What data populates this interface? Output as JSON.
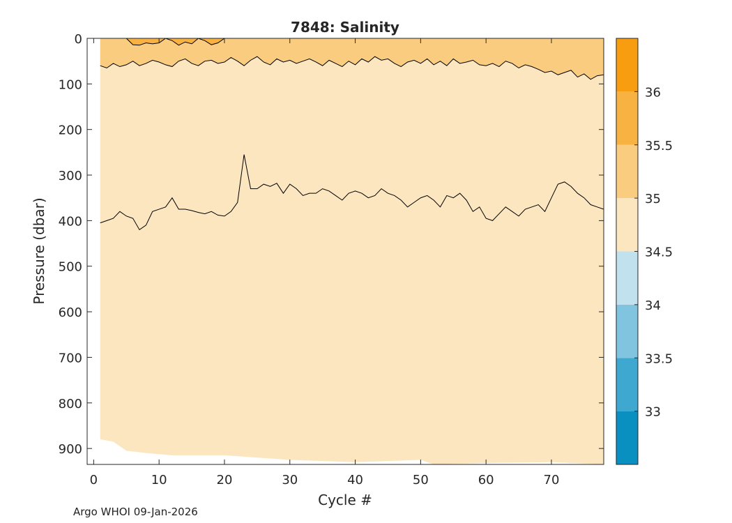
{
  "chart_data": {
    "type": "contour",
    "title": "7848:  Salinity",
    "xlabel": "Cycle #",
    "ylabel": "Pressure (dbar)",
    "xlim": [
      -1,
      78
    ],
    "ylim": [
      935,
      0
    ],
    "y_reversed": true,
    "xticks": [
      0,
      10,
      20,
      30,
      40,
      50,
      60,
      70
    ],
    "yticks": [
      0,
      100,
      200,
      300,
      400,
      500,
      600,
      700,
      800,
      900
    ],
    "colorbar": {
      "range": [
        32.5,
        36.5
      ],
      "ticks": [
        33,
        33.5,
        34,
        34.5,
        35,
        35.5,
        36
      ],
      "levels": [
        {
          "from": 32.5,
          "to": 33.0,
          "color": "#0a90c0"
        },
        {
          "from": 33.0,
          "to": 33.5,
          "color": "#3fa8d0"
        },
        {
          "from": 33.5,
          "to": 34.0,
          "color": "#80c4e0"
        },
        {
          "from": 34.0,
          "to": 34.5,
          "color": "#c1e1ee"
        },
        {
          "from": 34.5,
          "to": 35.0,
          "color": "#fbe6c0"
        },
        {
          "from": 35.0,
          "to": 35.5,
          "color": "#facc80"
        },
        {
          "from": 35.5,
          "to": 36.0,
          "color": "#f8b241"
        },
        {
          "from": 36.0,
          "to": 36.5,
          "color": "#f89d10"
        }
      ]
    },
    "data_extent": {
      "cycle_start": 1,
      "cycle_end": 78,
      "bottom_pressure": [
        {
          "cycle": 1,
          "pressure": 880
        },
        {
          "cycle": 3,
          "pressure": 885
        },
        {
          "cycle": 5,
          "pressure": 905
        },
        {
          "cycle": 8,
          "pressure": 910
        },
        {
          "cycle": 12,
          "pressure": 915
        },
        {
          "cycle": 20,
          "pressure": 915
        },
        {
          "cycle": 30,
          "pressure": 925
        },
        {
          "cycle": 40,
          "pressure": 930
        },
        {
          "cycle": 50,
          "pressure": 925
        },
        {
          "cycle": 52,
          "pressure": 935
        },
        {
          "cycle": 60,
          "pressure": 932
        },
        {
          "cycle": 70,
          "pressure": 930
        },
        {
          "cycle": 78,
          "pressure": 935
        }
      ]
    },
    "series": [
      {
        "name": "34.5-35.0 boundary",
        "level": 35.0,
        "x": [
          1,
          2,
          3,
          4,
          5,
          6,
          7,
          8,
          9,
          10,
          11,
          12,
          13,
          14,
          15,
          16,
          17,
          18,
          19,
          20,
          21,
          22,
          23,
          24,
          25,
          26,
          27,
          28,
          29,
          30,
          31,
          32,
          33,
          34,
          35,
          36,
          37,
          38,
          39,
          40,
          41,
          42,
          43,
          44,
          45,
          46,
          47,
          48,
          49,
          50,
          51,
          52,
          53,
          54,
          55,
          56,
          57,
          58,
          59,
          60,
          61,
          62,
          63,
          64,
          65,
          66,
          67,
          68,
          69,
          70,
          71,
          72,
          73,
          74,
          75,
          76,
          77,
          78
        ],
        "y": [
          405,
          400,
          395,
          380,
          390,
          395,
          420,
          410,
          380,
          375,
          370,
          350,
          375,
          375,
          378,
          382,
          385,
          380,
          388,
          390,
          380,
          360,
          255,
          330,
          330,
          320,
          325,
          318,
          340,
          320,
          330,
          345,
          340,
          340,
          330,
          335,
          345,
          355,
          340,
          335,
          340,
          350,
          345,
          330,
          340,
          345,
          355,
          370,
          360,
          350,
          345,
          355,
          370,
          345,
          350,
          340,
          355,
          380,
          370,
          395,
          400,
          385,
          370,
          380,
          390,
          375,
          370,
          365,
          380,
          350,
          320,
          315,
          325,
          340,
          350,
          365,
          370,
          375
        ]
      },
      {
        "name": "35.0-35.5 boundary",
        "level": 35.5,
        "x": [
          1,
          2,
          3,
          4,
          5,
          6,
          7,
          8,
          9,
          10,
          11,
          12,
          13,
          14,
          15,
          16,
          17,
          18,
          19,
          20,
          21,
          22,
          23,
          24,
          25,
          26,
          27,
          28,
          29,
          30,
          31,
          32,
          33,
          34,
          35,
          36,
          37,
          38,
          39,
          40,
          41,
          42,
          43,
          44,
          45,
          46,
          47,
          48,
          49,
          50,
          51,
          52,
          53,
          54,
          55,
          56,
          57,
          58,
          59,
          60,
          61,
          62,
          63,
          64,
          65,
          66,
          67,
          68,
          69,
          70,
          71,
          72,
          73,
          74,
          75,
          76,
          77,
          78
        ],
        "y": [
          60,
          65,
          55,
          62,
          58,
          50,
          60,
          55,
          48,
          52,
          58,
          62,
          50,
          45,
          55,
          60,
          50,
          48,
          55,
          52,
          42,
          50,
          60,
          48,
          40,
          52,
          58,
          45,
          52,
          48,
          55,
          50,
          45,
          52,
          60,
          48,
          55,
          62,
          50,
          58,
          45,
          52,
          40,
          48,
          45,
          55,
          62,
          52,
          48,
          55,
          45,
          58,
          50,
          60,
          45,
          55,
          52,
          48,
          58,
          60,
          55,
          62,
          50,
          55,
          65,
          58,
          62,
          68,
          75,
          72,
          80,
          75,
          70,
          85,
          78,
          90,
          82,
          80
        ]
      },
      {
        "name": "35.5-36.0 boundary",
        "level": 36.0,
        "x": [
          5,
          6,
          7,
          8,
          9,
          10,
          11,
          12,
          13,
          14,
          15,
          16,
          17,
          18,
          19,
          20
        ],
        "y": [
          0,
          14,
          15,
          10,
          12,
          10,
          0,
          5,
          15,
          8,
          12,
          0,
          5,
          14,
          10,
          0
        ]
      }
    ]
  },
  "footer": "Argo WHOI 09-Jan-2026"
}
